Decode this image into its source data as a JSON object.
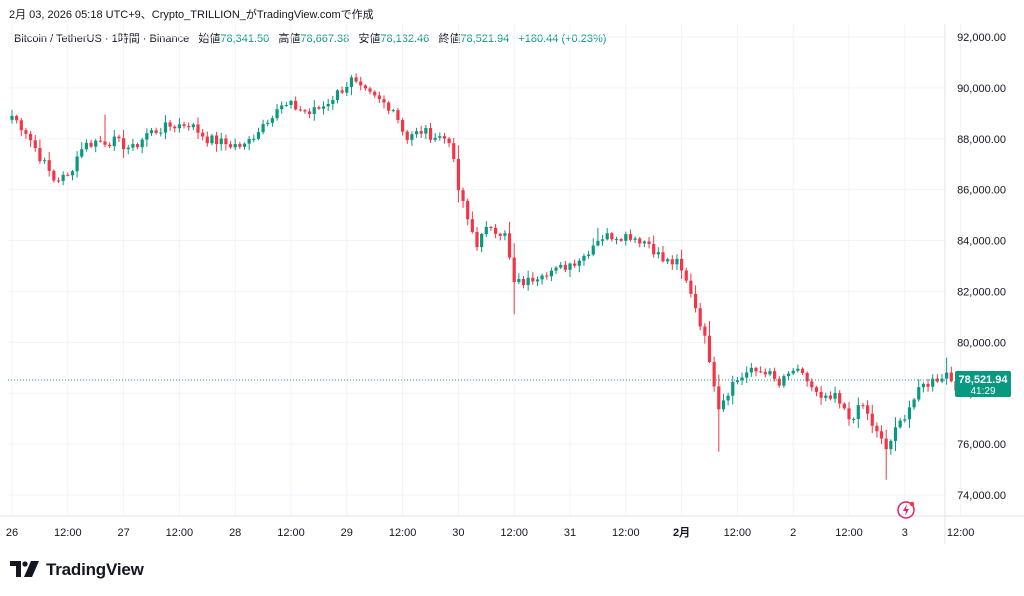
{
  "header": {
    "caption": "2月 03, 2026 05:18 UTC+9、Crypto_TRILLION_がTradingView.comで作成"
  },
  "legend": {
    "symbol": "Bitcoin / TetherUS · 1時間 · Binance",
    "open_label": "始値",
    "open_value": "78,341.50",
    "high_label": "高値",
    "high_value": "78,667.38",
    "low_label": "安値",
    "low_value": "78,132.46",
    "close_label": "終値",
    "close_value": "78,521.94",
    "change": "+180.44 (+0.23%)"
  },
  "price_tag": {
    "price": "78,521.94",
    "countdown": "41:29"
  },
  "footer": {
    "brand": "TradingView"
  },
  "colors": {
    "up": "#089981",
    "down": "#f23645",
    "grid": "#f0f3fa",
    "axis_text": "#131722",
    "price_tag_bg": "#089981",
    "last_price_line": "#089981"
  },
  "chart_data": {
    "type": "candlestick",
    "timeframe": "1h",
    "y_axis_ticks": [
      92000,
      90000,
      88000,
      86000,
      84000,
      82000,
      80000,
      78000,
      76000,
      74000
    ],
    "y_axis_tick_labels": [
      "92,000.00",
      "90,000.00",
      "88,000.00",
      "86,000.00",
      "84,000.00",
      "82,000.00",
      "80,000.00",
      "78,000.00",
      "76,000.00",
      "74,000.00"
    ],
    "ylim": [
      73000,
      93300
    ],
    "x_axis_labels": [
      "26",
      "12:00",
      "27",
      "12:00",
      "28",
      "12:00",
      "29",
      "12:00",
      "30",
      "12:00",
      "31",
      "12:00",
      "2月",
      "12:00",
      "2",
      "12:00",
      "3",
      "12:00"
    ],
    "x_label_hour_index": [
      0,
      12,
      24,
      36,
      48,
      60,
      72,
      84,
      96,
      108,
      120,
      132,
      144,
      156,
      168,
      180,
      192,
      204
    ],
    "grid": true,
    "last_price": 78521.94,
    "anchors": [
      [
        0,
        88900
      ],
      [
        3,
        88300
      ],
      [
        6,
        87300
      ],
      [
        9,
        86400
      ],
      [
        12,
        86500
      ],
      [
        15,
        87700
      ],
      [
        18,
        87900
      ],
      [
        22,
        87900
      ],
      [
        26,
        87600
      ],
      [
        29,
        88200
      ],
      [
        34,
        88500
      ],
      [
        38,
        88600
      ],
      [
        42,
        88000
      ],
      [
        46,
        87800
      ],
      [
        50,
        87700
      ],
      [
        54,
        88600
      ],
      [
        57,
        89200
      ],
      [
        60,
        89300
      ],
      [
        64,
        89000
      ],
      [
        67,
        89300
      ],
      [
        70,
        89800
      ],
      [
        73,
        90300
      ],
      [
        75,
        89900
      ],
      [
        78,
        89600
      ],
      [
        82,
        89200
      ],
      [
        85,
        88000
      ],
      [
        88,
        88300
      ],
      [
        91,
        88100
      ],
      [
        94,
        88000
      ],
      [
        96,
        86000
      ],
      [
        98,
        84800
      ],
      [
        100,
        83900
      ],
      [
        103,
        84600
      ],
      [
        106,
        84200
      ],
      [
        108,
        82300
      ],
      [
        111,
        82400
      ],
      [
        114,
        82800
      ],
      [
        117,
        82800
      ],
      [
        120,
        83100
      ],
      [
        123,
        83400
      ],
      [
        126,
        84100
      ],
      [
        129,
        84200
      ],
      [
        133,
        84200
      ],
      [
        137,
        83900
      ],
      [
        140,
        83200
      ],
      [
        143,
        83100
      ],
      [
        146,
        82000
      ],
      [
        148,
        80800
      ],
      [
        150,
        79400
      ],
      [
        152,
        77500
      ],
      [
        155,
        78400
      ],
      [
        158,
        78800
      ],
      [
        162,
        78900
      ],
      [
        165,
        78300
      ],
      [
        168,
        78900
      ],
      [
        171,
        78500
      ],
      [
        174,
        77700
      ],
      [
        177,
        77800
      ],
      [
        180,
        77000
      ],
      [
        183,
        77500
      ],
      [
        186,
        76400
      ],
      [
        188,
        75800
      ],
      [
        190,
        76500
      ],
      [
        193,
        77500
      ],
      [
        196,
        78300
      ],
      [
        199,
        78600
      ],
      [
        201,
        78800
      ],
      [
        203,
        78300
      ],
      [
        204,
        78522
      ]
    ]
  }
}
